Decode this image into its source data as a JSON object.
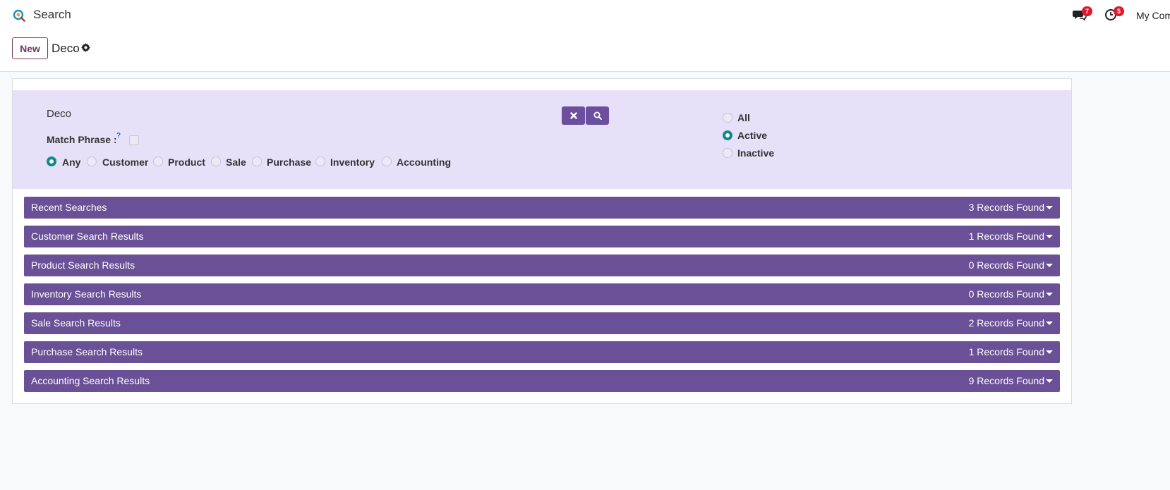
{
  "app": {
    "title": "Search",
    "icon": "search-app-icon",
    "company": "My Com"
  },
  "systray": {
    "messages": {
      "icon": "chat-icon",
      "count": "7"
    },
    "activities": {
      "icon": "clock-icon",
      "count": "5"
    }
  },
  "controlbar": {
    "new_label": "New",
    "record_name": "Deco",
    "settings_icon": "gear-icon"
  },
  "search": {
    "query": "Deco",
    "clear_icon": "close-icon",
    "search_icon": "search-icon",
    "match_phrase_label": "Match Phrase :",
    "match_phrase_help": "?",
    "match_phrase_checked": false,
    "scope_options": [
      {
        "label": "Any",
        "checked": true
      },
      {
        "label": "Customer",
        "checked": false
      },
      {
        "label": "Product",
        "checked": false
      },
      {
        "label": "Sale",
        "checked": false
      },
      {
        "label": "Purchase",
        "checked": false
      },
      {
        "label": "Inventory",
        "checked": false
      },
      {
        "label": "Accounting",
        "checked": false
      }
    ],
    "status_options": [
      {
        "label": "All",
        "checked": false
      },
      {
        "label": "Active",
        "checked": true
      },
      {
        "label": "Inactive",
        "checked": false
      }
    ]
  },
  "results": [
    {
      "title": "Recent Searches",
      "count": "3 Records Found"
    },
    {
      "title": "Customer Search Results",
      "count": "1 Records Found"
    },
    {
      "title": "Product Search Results",
      "count": "0 Records Found"
    },
    {
      "title": "Inventory Search Results",
      "count": "0 Records Found"
    },
    {
      "title": "Sale Search Results",
      "count": "2 Records Found"
    },
    {
      "title": "Purchase Search Results",
      "count": "1 Records Found"
    },
    {
      "title": "Accounting Search Results",
      "count": "9 Records Found"
    }
  ],
  "colors": {
    "brand": "#71375f",
    "panel": "#e6e0f8",
    "bar": "#6a5096",
    "radio_checked": "#0f8a8a",
    "badge": "#e0182d"
  }
}
